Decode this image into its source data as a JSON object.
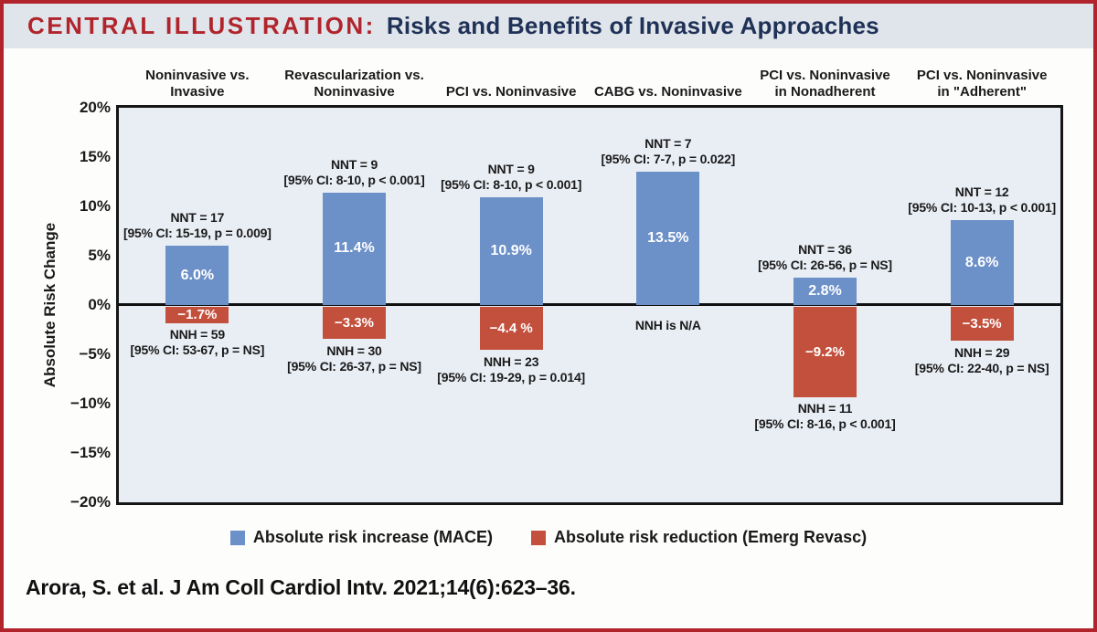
{
  "title": {
    "prefix": "CENTRAL ILLUSTRATION:",
    "text": "Risks and Benefits of Invasive Approaches"
  },
  "citation": "Arora, S. et al. J Am Coll Cardiol Intv. 2021;14(6):623–36.",
  "colors": {
    "increase": "#6c90c8",
    "reduction": "#c3503d",
    "frame_red": "#b1242b",
    "title_navy": "#203157",
    "plot_bg": "#e9eef5"
  },
  "legend": [
    {
      "label": "Absolute risk increase (MACE)",
      "color_key": "increase"
    },
    {
      "label": "Absolute risk reduction (Emerg Revasc)",
      "color_key": "reduction"
    }
  ],
  "chart_data": {
    "type": "bar",
    "title": "Risks and Benefits of Invasive Approaches",
    "xlabel": "",
    "ylabel": "Absolute Risk Change",
    "ylim": [
      -20,
      20
    ],
    "ytick_labels": [
      "20%",
      "15%",
      "10%",
      "5%",
      "0%",
      "−5%",
      "−10%",
      "−15%",
      "−20%"
    ],
    "ytick_values": [
      20,
      15,
      10,
      5,
      0,
      -5,
      -10,
      -15,
      -20
    ],
    "grid": false,
    "legend_position": "bottom",
    "categories": [
      "Noninvasive vs. Invasive",
      "Revascularization vs. Noninvasive",
      "PCI vs. Noninvasive",
      "CABG vs. Noninvasive",
      "PCI vs. Noninvasive in Nonadherent",
      "PCI vs. Noninvasive in \"Adherent\""
    ],
    "series": [
      {
        "name": "Absolute risk increase (MACE)",
        "values": [
          6.0,
          11.4,
          10.9,
          13.5,
          2.8,
          8.6
        ]
      },
      {
        "name": "Absolute risk reduction (Emerg Revasc)",
        "values": [
          -1.7,
          -3.3,
          -4.4,
          null,
          -9.2,
          -3.5
        ]
      }
    ],
    "groups": [
      {
        "header": [
          "Noninvasive vs.",
          "Invasive"
        ],
        "increase": 6.0,
        "increase_label": "6.0%",
        "nnt": [
          "NNT = 17",
          "[95% CI: 15-19, p = 0.009]"
        ],
        "reduction": -1.7,
        "reduction_label": "−1.7%",
        "nnh": [
          "NNH = 59",
          "[95% CI: 53-67, p = NS]"
        ]
      },
      {
        "header": [
          "Revascularization vs.",
          "Noninvasive"
        ],
        "increase": 11.4,
        "increase_label": "11.4%",
        "nnt": [
          "NNT = 9",
          "[95% CI: 8-10, p < 0.001]"
        ],
        "reduction": -3.3,
        "reduction_label": "−3.3%",
        "nnh": [
          "NNH = 30",
          "[95% CI: 26-37, p = NS]"
        ]
      },
      {
        "header": [
          "PCI vs. Noninvasive"
        ],
        "increase": 10.9,
        "increase_label": "10.9%",
        "nnt": [
          "NNT = 9",
          "[95% CI: 8-10, p < 0.001]"
        ],
        "reduction": -4.4,
        "reduction_label": "−4.4 %",
        "nnh": [
          "NNH = 23",
          "[95% CI: 19-29, p = 0.014]"
        ]
      },
      {
        "header": [
          "CABG vs. Noninvasive"
        ],
        "increase": 13.5,
        "increase_label": "13.5%",
        "nnt": [
          "NNT = 7",
          "[95% CI: 7-7, p = 0.022]"
        ],
        "reduction": null,
        "reduction_label": null,
        "nnh": [
          "NNH is N/A"
        ]
      },
      {
        "header": [
          "PCI vs. Noninvasive",
          "in Nonadherent"
        ],
        "increase": 2.8,
        "increase_label": "2.8%",
        "nnt": [
          "NNT = 36",
          "[95% CI: 26-56, p = NS]"
        ],
        "reduction": -9.2,
        "reduction_label": "−9.2%",
        "nnh": [
          "NNH = 11",
          "[95% CI: 8-16, p < 0.001]"
        ]
      },
      {
        "header": [
          "PCI vs. Noninvasive",
          "in \"Adherent\""
        ],
        "increase": 8.6,
        "increase_label": "8.6%",
        "nnt": [
          "NNT = 12",
          "[95% CI: 10-13, p < 0.001]"
        ],
        "reduction": -3.5,
        "reduction_label": "−3.5%",
        "nnh": [
          "NNH = 29",
          "[95% CI: 22-40, p = NS]"
        ]
      }
    ]
  }
}
